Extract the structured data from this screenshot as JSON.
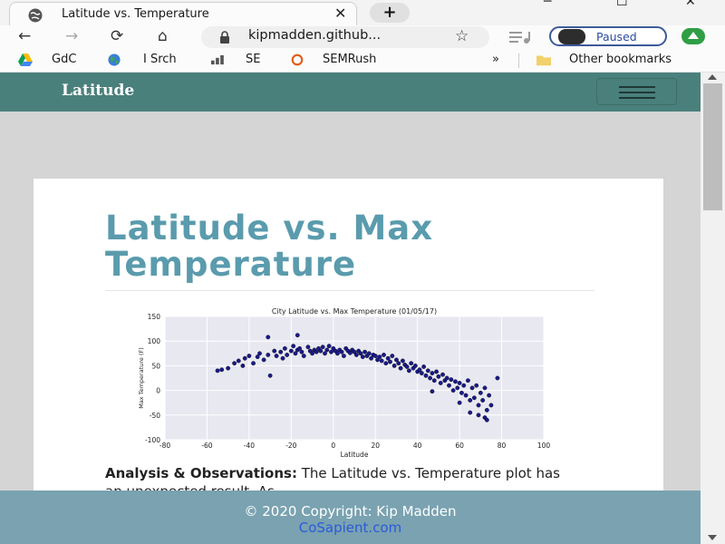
{
  "browser": {
    "tab": {
      "title": "Latitude vs. Temperature",
      "favicon": "globe-icon"
    },
    "new_tab_label": "+",
    "window_controls": {
      "minimize": "─",
      "maximize": "☐",
      "close": "✕"
    },
    "nav": {
      "back": "←",
      "forward": "→",
      "reload": "⟳",
      "home": "⌂"
    },
    "address": {
      "url": "kipmadden.github..."
    },
    "profile": {
      "status": "Paused"
    },
    "bookmarks": [
      {
        "label": "GdC",
        "icon": "google-drive-icon"
      },
      {
        "label": "I Srch",
        "icon": "globe-color-icon"
      },
      {
        "label": "SE",
        "icon": "bar-chart-icon"
      },
      {
        "label": "SEMRush",
        "icon": "semrush-icon"
      }
    ],
    "bookmarks_overflow": "»",
    "other_bookmarks": "Other bookmarks"
  },
  "page": {
    "brand": "Latitude",
    "title": "Latitude vs. Max Temperature",
    "analysis_heading": "Analysis & Observations:",
    "analysis_text": "The Latitude vs. Temperature plot has an unexpected result. As",
    "footer": {
      "copyright": "© 2020 Copyright: Kip Madden",
      "link": "CoSapient.com"
    }
  },
  "chart_data": {
    "type": "scatter",
    "title": "City Latitude vs. Max Temperature (01/05/17)",
    "xlabel": "Latitude",
    "ylabel": "Max Temperature (F)",
    "xlim": [
      -80,
      100
    ],
    "ylim": [
      -100,
      150
    ],
    "xticks": [
      -80,
      -60,
      -40,
      -20,
      0,
      20,
      40,
      60,
      80,
      100
    ],
    "yticks": [
      -100,
      -50,
      0,
      50,
      100,
      150
    ],
    "grid": true,
    "point_color": "#1a1a8c",
    "background_color": "#e8e8f1",
    "series": [
      {
        "x": [
          -55,
          -53,
          -50,
          -47,
          -45,
          -43,
          -42,
          -40,
          -38,
          -36,
          -35,
          -33,
          -31,
          -30,
          -28,
          -27,
          -25,
          -24,
          -23,
          -22,
          -20,
          -19,
          -18,
          -17,
          -16,
          -15,
          -14,
          -12,
          -11,
          -10,
          -9,
          -8,
          -7,
          -6,
          -5,
          -4,
          -3,
          -2,
          -1,
          0,
          1,
          2,
          3,
          4,
          5,
          6,
          7,
          8,
          9,
          10,
          11,
          12,
          13,
          14,
          15,
          16,
          17,
          18,
          19,
          20,
          21,
          22,
          23,
          24,
          25,
          26,
          27,
          28,
          29,
          30,
          31,
          32,
          33,
          34,
          35,
          36,
          37,
          38,
          39,
          40,
          41,
          42,
          43,
          44,
          45,
          46,
          47,
          48,
          49,
          50,
          51,
          52,
          53,
          54,
          55,
          56,
          57,
          58,
          59,
          60,
          61,
          62,
          63,
          64,
          65,
          66,
          67,
          68,
          69,
          70,
          71,
          72,
          73,
          74,
          75,
          78,
          -31,
          -17,
          47,
          60,
          65,
          69,
          72,
          73
        ],
        "y": [
          40,
          42,
          45,
          55,
          60,
          50,
          65,
          70,
          55,
          68,
          75,
          62,
          72,
          30,
          80,
          70,
          78,
          65,
          85,
          72,
          80,
          90,
          75,
          82,
          85,
          78,
          70,
          88,
          80,
          75,
          82,
          78,
          85,
          80,
          88,
          75,
          82,
          90,
          78,
          85,
          80,
          75,
          82,
          78,
          70,
          85,
          80,
          76,
          82,
          78,
          72,
          80,
          75,
          68,
          78,
          70,
          75,
          65,
          72,
          70,
          62,
          68,
          60,
          72,
          55,
          65,
          58,
          70,
          50,
          62,
          55,
          45,
          60,
          52,
          48,
          40,
          55,
          45,
          50,
          38,
          42,
          35,
          48,
          30,
          40,
          25,
          35,
          20,
          38,
          28,
          15,
          32,
          20,
          25,
          10,
          22,
          0,
          18,
          5,
          15,
          -5,
          10,
          -10,
          20,
          -20,
          5,
          -15,
          10,
          -30,
          -5,
          -20,
          5,
          -40,
          -10,
          -30,
          25,
          108,
          112,
          -2,
          -25,
          -45,
          -50,
          -55,
          -60
        ]
      }
    ]
  }
}
